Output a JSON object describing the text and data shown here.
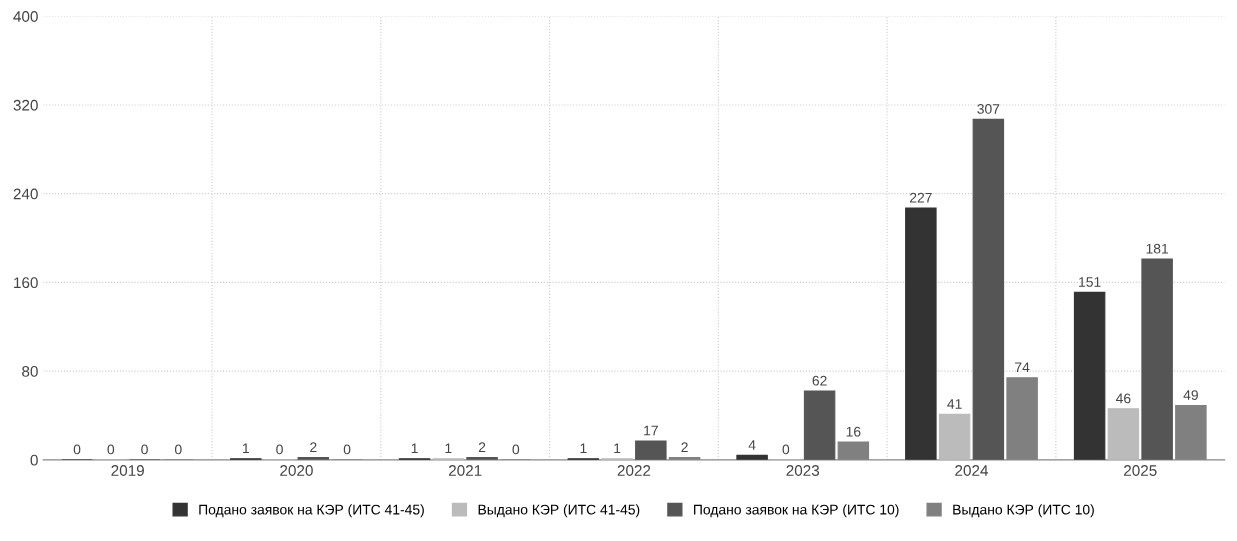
{
  "chart_data": {
    "type": "bar",
    "categories": [
      "2019",
      "2020",
      "2021",
      "2022",
      "2023",
      "2024",
      "2025"
    ],
    "series": [
      {
        "name": "Подано заявок на КЭР (ИТС 41-45)",
        "color": "#333333",
        "values": [
          0,
          1,
          1,
          1,
          4,
          227,
          151
        ]
      },
      {
        "name": "Выдано КЭР (ИТС 41-45)",
        "color": "#bbbbbb",
        "values": [
          0,
          0,
          1,
          1,
          0,
          41,
          46
        ]
      },
      {
        "name": "Подано заявок на КЭР (ИТС 10)",
        "color": "#555555",
        "values": [
          0,
          2,
          2,
          17,
          62,
          307,
          181
        ]
      },
      {
        "name": "Выдано КЭР (ИТС 10)",
        "color": "#808080",
        "values": [
          0,
          0,
          0,
          2,
          16,
          74,
          49
        ]
      }
    ],
    "ylim": [
      0,
      400
    ],
    "yticks": [
      0,
      80,
      160,
      240,
      320,
      400
    ],
    "grid": true,
    "legend": "bottom",
    "data_labels": true
  }
}
